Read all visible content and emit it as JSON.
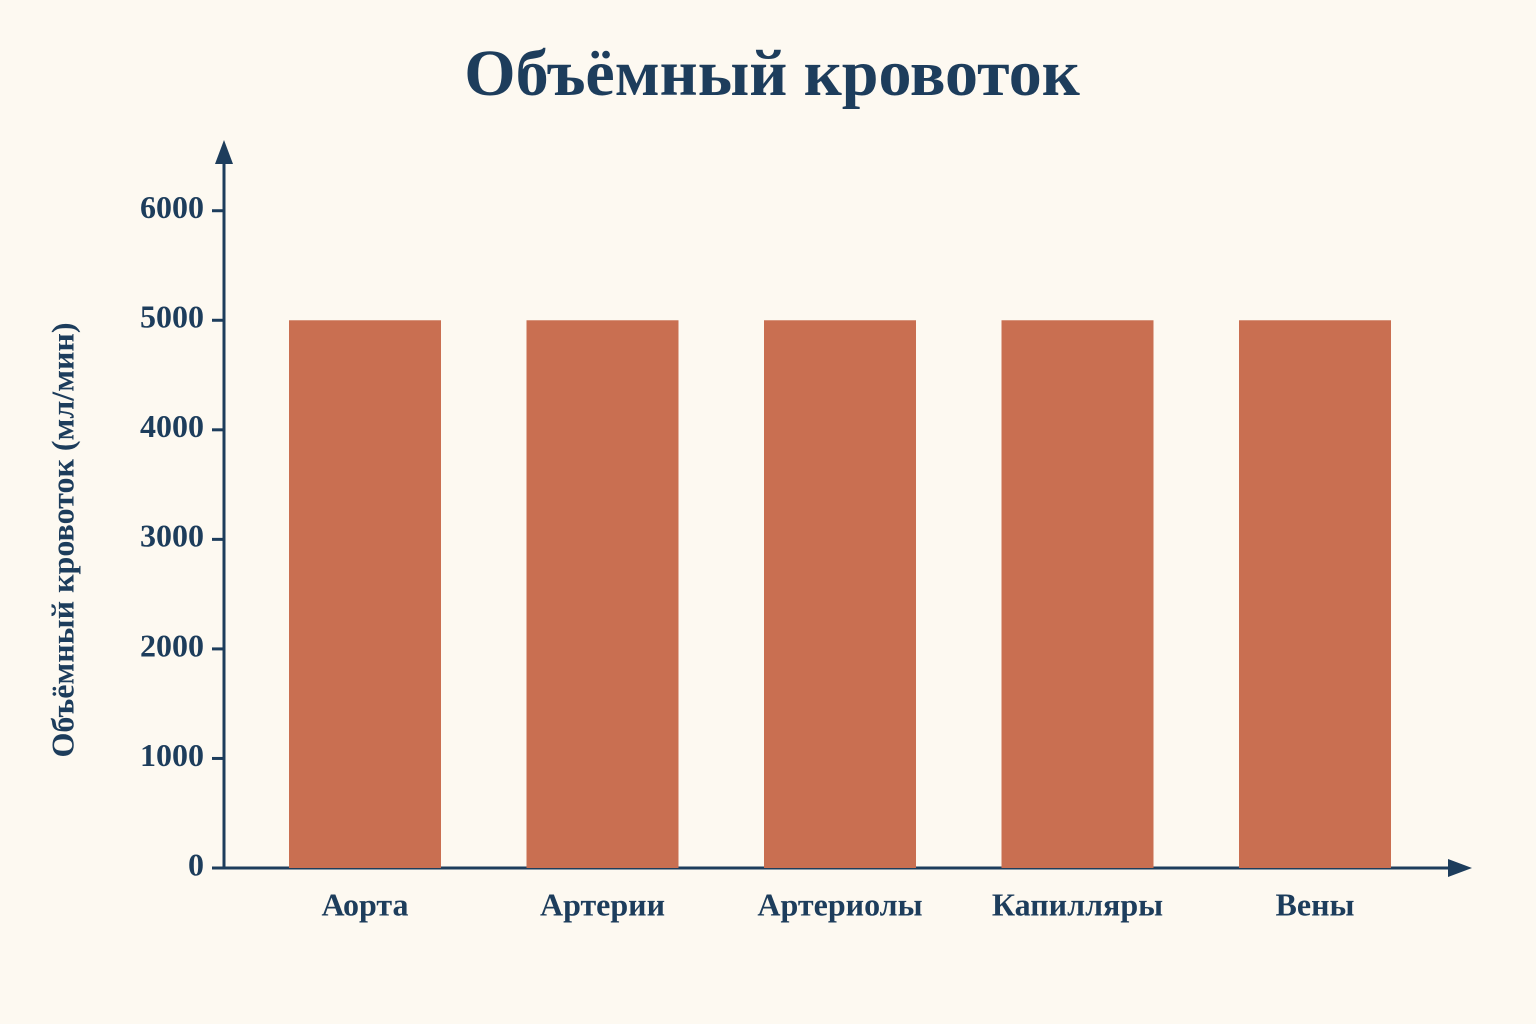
{
  "chart_data": {
    "type": "bar",
    "title": "Объёмный кровоток",
    "y_label": "Объёмный кровоток (мл/мин)",
    "categories": [
      "Аорта",
      "Артерии",
      "Артериолы",
      "Капилляры",
      "Вены"
    ],
    "values": [
      5000,
      5000,
      5000,
      5000,
      5000
    ],
    "color": "#c96f51",
    "ylim": [
      0,
      6600
    ],
    "yticks": [
      0,
      1000,
      2000,
      3000,
      4000,
      5000,
      6000
    ]
  }
}
